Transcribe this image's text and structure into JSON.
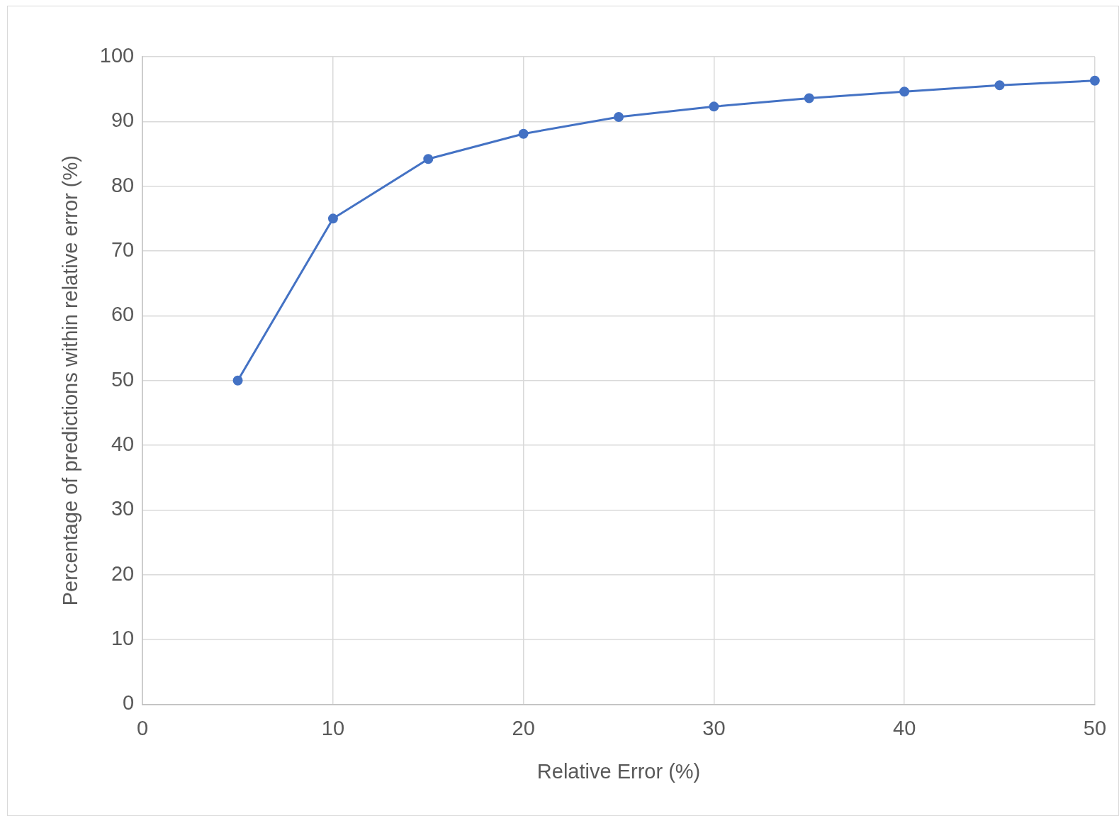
{
  "chart_data": {
    "type": "line",
    "xlabel": "Relative Error (%)",
    "ylabel": "Percentage of predictions within relative error (%)",
    "x": [
      5,
      10,
      15,
      20,
      25,
      30,
      35,
      40,
      45,
      50
    ],
    "series": [
      {
        "color": "#4472c4",
        "values": [
          50,
          75,
          84.2,
          88.1,
          90.7,
          92.3,
          93.6,
          94.6,
          95.6,
          96.3
        ]
      }
    ],
    "xlim": [
      0,
      50
    ],
    "xticks": [
      0,
      10,
      20,
      30,
      40,
      50
    ],
    "ylim": [
      0,
      100
    ],
    "yticks": [
      0,
      10,
      20,
      30,
      40,
      50,
      60,
      70,
      80,
      90,
      100
    ],
    "grid": true,
    "legend": false,
    "marker": "circle",
    "line_style": "solid"
  }
}
